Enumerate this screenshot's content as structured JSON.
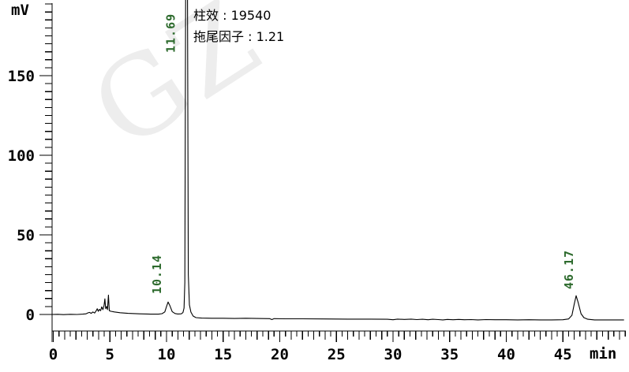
{
  "chart_data": {
    "type": "line",
    "title": "",
    "xlabel": "min",
    "ylabel": "mV",
    "xlim": [
      0,
      50.5
    ],
    "ylim": [
      -10,
      196
    ],
    "x_major_ticks": [
      0,
      5,
      10,
      15,
      20,
      25,
      30,
      35,
      40,
      45
    ],
    "x_minor_step": 0.5,
    "y_major_ticks": [
      0,
      50,
      100,
      150
    ],
    "y_minor_step": 5,
    "grid": "off",
    "legend": "none",
    "colors": {
      "trace": "#000000",
      "axis": "#000000",
      "peak_label": "#2e6b2e",
      "annotation_text": "#000000",
      "watermark": "#ededed"
    },
    "watermark": "GZ",
    "annotations": [
      {
        "label": "柱效",
        "value": "19540",
        "text": "柱效 : 19540"
      },
      {
        "label": "拖尾因子",
        "value": "1.21",
        "text": "拖尾因子 : 1.21"
      }
    ],
    "peaks": [
      {
        "retention_time": 10.14,
        "label": "10.14",
        "height_mV": 7.8,
        "clipped": false
      },
      {
        "retention_time": 11.69,
        "label": "11.69",
        "height_mV": 215,
        "clipped": true
      },
      {
        "retention_time": 46.17,
        "label": "46.17",
        "height_mV": 11.8,
        "clipped": false
      }
    ],
    "series": [
      {
        "name": "signal",
        "points": [
          [
            -0.1,
            0
          ],
          [
            0.4,
            0.1
          ],
          [
            0.9,
            -0.1
          ],
          [
            1.5,
            0.1
          ],
          [
            2.1,
            0
          ],
          [
            2.6,
            0.2
          ],
          [
            2.9,
            0.4
          ],
          [
            3.05,
            1.0
          ],
          [
            3.2,
            1.3
          ],
          [
            3.35,
            0.7
          ],
          [
            3.5,
            1.6
          ],
          [
            3.65,
            0.9
          ],
          [
            3.78,
            2.2
          ],
          [
            3.88,
            3.6
          ],
          [
            3.98,
            2.0
          ],
          [
            4.08,
            3.2
          ],
          [
            4.18,
            2.4
          ],
          [
            4.28,
            4.8
          ],
          [
            4.38,
            3.0
          ],
          [
            4.48,
            5.5
          ],
          [
            4.56,
            9.8
          ],
          [
            4.63,
            3.6
          ],
          [
            4.71,
            5.0
          ],
          [
            4.79,
            3.0
          ],
          [
            4.87,
            12.2
          ],
          [
            4.95,
            2.4
          ],
          [
            5.1,
            2.0
          ],
          [
            5.4,
            1.6
          ],
          [
            5.9,
            1.1
          ],
          [
            6.6,
            0.7
          ],
          [
            7.6,
            0.4
          ],
          [
            8.6,
            0.2
          ],
          [
            9.3,
            0.2
          ],
          [
            9.6,
            0.5
          ],
          [
            9.85,
            1.6
          ],
          [
            10.0,
            5.0
          ],
          [
            10.14,
            7.8
          ],
          [
            10.3,
            5.5
          ],
          [
            10.5,
            1.8
          ],
          [
            10.75,
            0.6
          ],
          [
            11.0,
            0.3
          ],
          [
            11.3,
            0.4
          ],
          [
            11.45,
            1.2
          ],
          [
            11.55,
            4.0
          ],
          [
            11.62,
            20
          ],
          [
            11.69,
            215
          ],
          [
            11.85,
            215
          ],
          [
            11.92,
            25
          ],
          [
            12.02,
            6
          ],
          [
            12.15,
            1.5
          ],
          [
            12.35,
            -1.0
          ],
          [
            12.6,
            -2.0
          ],
          [
            13.1,
            -2.3
          ],
          [
            14,
            -2.4
          ],
          [
            15,
            -2.4
          ],
          [
            16,
            -2.5
          ],
          [
            17,
            -2.4
          ],
          [
            18,
            -2.5
          ],
          [
            19.1,
            -2.6
          ],
          [
            19.3,
            -3.2
          ],
          [
            19.5,
            -2.6
          ],
          [
            20.5,
            -2.7
          ],
          [
            22,
            -2.7
          ],
          [
            24,
            -2.8
          ],
          [
            26,
            -2.9
          ],
          [
            28,
            -2.9
          ],
          [
            29.5,
            -3.0
          ],
          [
            30,
            -3.3
          ],
          [
            30.4,
            -2.9
          ],
          [
            31,
            -3.1
          ],
          [
            31.6,
            -2.9
          ],
          [
            32.1,
            -3.2
          ],
          [
            32.6,
            -3.0
          ],
          [
            33.1,
            -3.3
          ],
          [
            33.5,
            -3.0
          ],
          [
            34,
            -3.2
          ],
          [
            34.4,
            -3.4
          ],
          [
            34.8,
            -3.1
          ],
          [
            35.3,
            -3.3
          ],
          [
            35.8,
            -3.1
          ],
          [
            36.3,
            -3.3
          ],
          [
            36.9,
            -3.2
          ],
          [
            37.5,
            -3.4
          ],
          [
            38.2,
            -3.2
          ],
          [
            39,
            -3.3
          ],
          [
            40,
            -3.3
          ],
          [
            41,
            -3.4
          ],
          [
            42,
            -3.3
          ],
          [
            43,
            -3.4
          ],
          [
            44,
            -3.4
          ],
          [
            45,
            -3.3
          ],
          [
            45.5,
            -2.8
          ],
          [
            45.8,
            -0.5
          ],
          [
            46.0,
            6.5
          ],
          [
            46.17,
            11.8
          ],
          [
            46.35,
            7.5
          ],
          [
            46.6,
            0.5
          ],
          [
            46.85,
            -2.0
          ],
          [
            47.2,
            -3.0
          ],
          [
            47.8,
            -3.4
          ],
          [
            49,
            -3.4
          ],
          [
            50.4,
            -3.4
          ]
        ]
      }
    ]
  }
}
